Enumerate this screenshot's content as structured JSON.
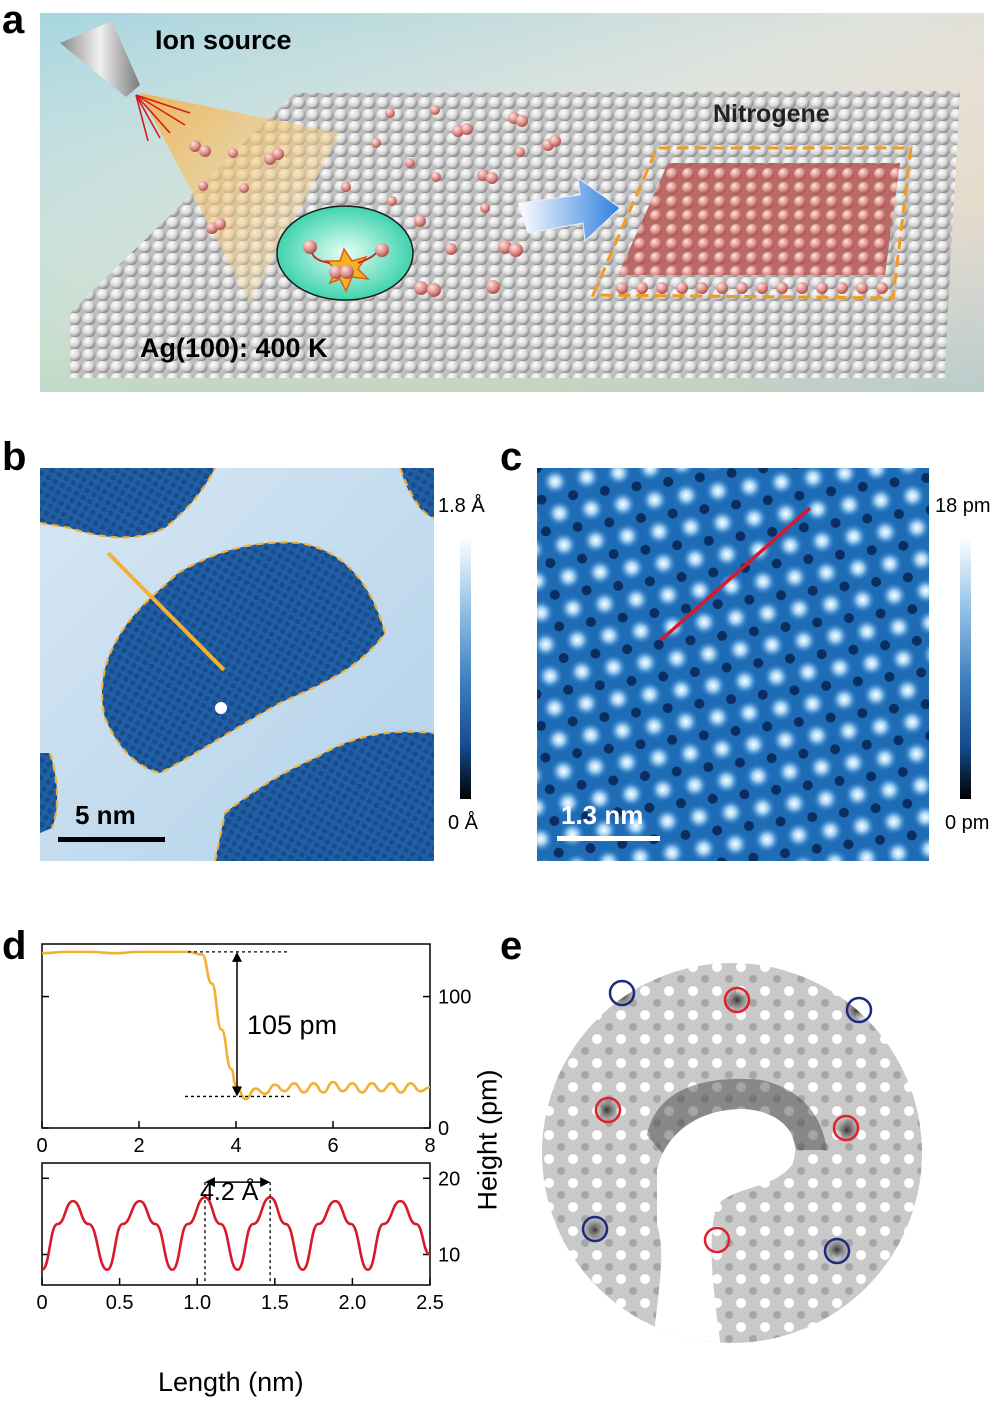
{
  "panels": {
    "a": {
      "letter": "a",
      "ion_source_label": "Ion source",
      "product_label": "Nitrogene",
      "substrate_label": "Ag(100): 400 K"
    },
    "b": {
      "letter": "b",
      "scale_bar_label": "5 nm",
      "colorbar_max": "1.8 Å",
      "colorbar_min": "0 Å"
    },
    "c": {
      "letter": "c",
      "scale_bar_label": "1.3 nm",
      "colorbar_max": "18 pm",
      "colorbar_min": "0 pm"
    },
    "d": {
      "letter": "d",
      "step_annotation": "105 pm",
      "period_annotation": "4.2 Å",
      "shared_xlabel": "Length (nm)",
      "shared_ylabel": "Height (pm)"
    },
    "e": {
      "letter": "e"
    }
  },
  "colors": {
    "profile_b": "#f2b134",
    "profile_c": "#d7192b",
    "circle_red": "#e0202e",
    "circle_blue": "#1c2a80",
    "boundary": "#f2a52a",
    "nitrogene": "#d98a86"
  },
  "chart_data": [
    {
      "type": "line",
      "panel": "d-top",
      "x": [
        0,
        0.5,
        1.0,
        1.5,
        2.0,
        2.5,
        3.0,
        3.3,
        3.5,
        3.7,
        3.9,
        4.0,
        4.2,
        4.4,
        4.6,
        4.8,
        5.0,
        5.2,
        5.4,
        5.6,
        5.8,
        6.0,
        6.2,
        6.4,
        6.6,
        6.8,
        7.0,
        7.2,
        7.4,
        7.6,
        7.8,
        8.0
      ],
      "y": [
        133,
        134,
        134,
        133,
        134,
        134,
        134,
        132,
        110,
        75,
        45,
        32,
        22,
        30,
        26,
        33,
        28,
        34,
        27,
        34,
        27,
        35,
        28,
        34,
        27,
        34,
        28,
        34,
        27,
        34,
        28,
        31
      ],
      "xlim": [
        0,
        8
      ],
      "ylim": [
        0,
        140
      ],
      "xticks": [
        0,
        2,
        4,
        6,
        8
      ],
      "yticks": [
        0,
        100
      ]
    },
    {
      "type": "line",
      "panel": "d-bottom",
      "x": [
        0,
        0.1,
        0.2,
        0.3,
        0.42,
        0.52,
        0.63,
        0.73,
        0.84,
        0.94,
        1.05,
        1.15,
        1.26,
        1.36,
        1.47,
        1.57,
        1.68,
        1.78,
        1.89,
        1.99,
        2.1,
        2.2,
        2.31,
        2.41,
        2.5
      ],
      "y": [
        8,
        14,
        17,
        14,
        8,
        14,
        17,
        14,
        8,
        14,
        17.5,
        14,
        8,
        14,
        17.5,
        14,
        8,
        14,
        17,
        14,
        8,
        14,
        17,
        14,
        10
      ],
      "xlim": [
        0,
        2.5
      ],
      "ylim": [
        6,
        22
      ],
      "xticks": [
        0,
        0.5,
        1.0,
        1.5,
        2.0,
        2.5
      ],
      "xtick_labels": [
        "0",
        "0.5",
        "1.0",
        "1.5",
        "2.0",
        "2.5"
      ],
      "yticks": [
        10,
        20
      ]
    }
  ]
}
